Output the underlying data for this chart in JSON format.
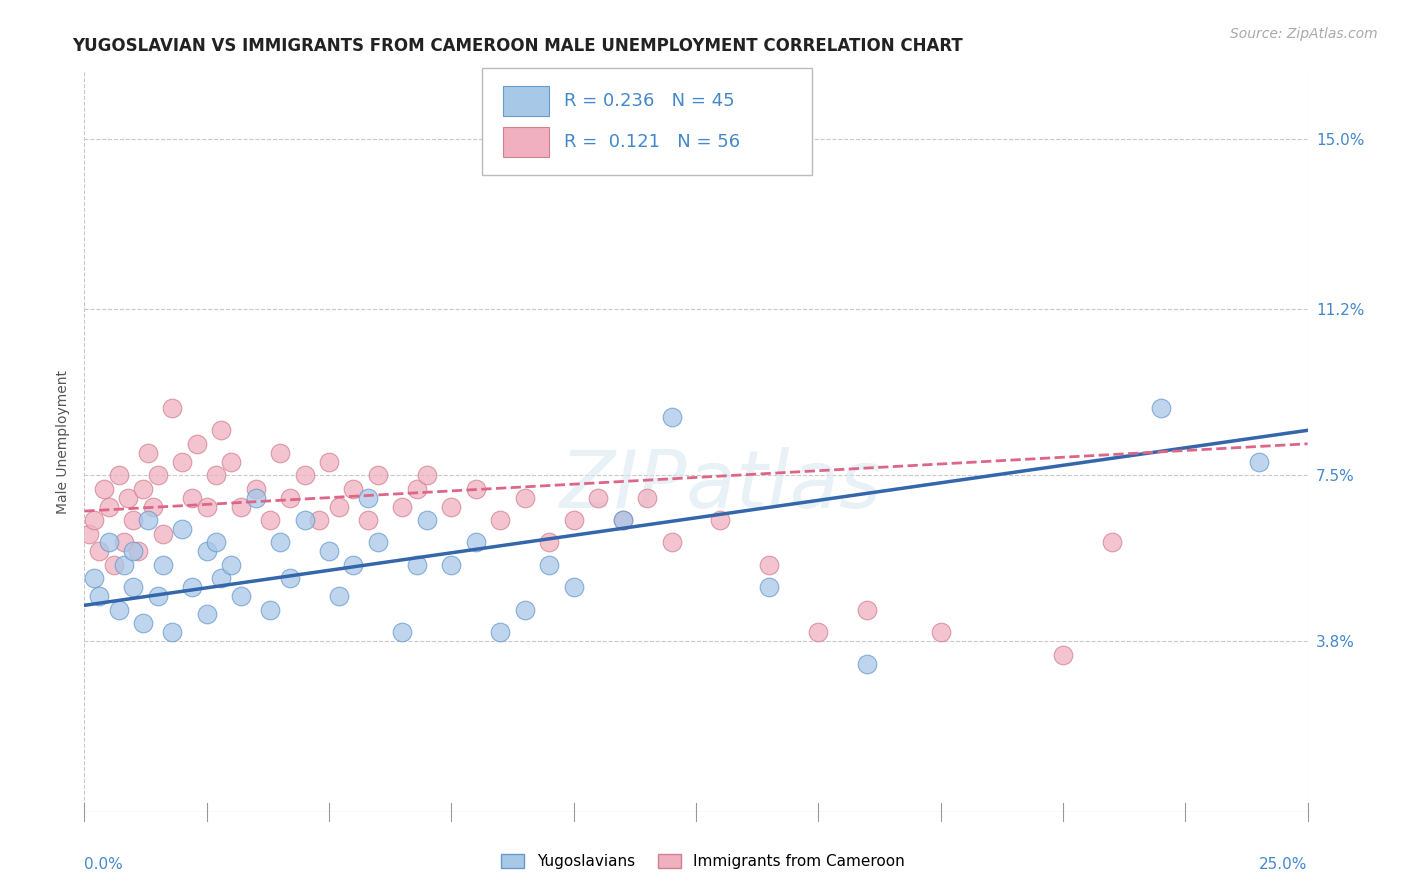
{
  "title": "YUGOSLAVIAN VS IMMIGRANTS FROM CAMEROON MALE UNEMPLOYMENT CORRELATION CHART",
  "source": "Source: ZipAtlas.com",
  "ylabel": "Male Unemployment",
  "xlim": [
    0.0,
    0.25
  ],
  "ylim": [
    0.0,
    0.165
  ],
  "yticks": [
    0.038,
    0.075,
    0.112,
    0.15
  ],
  "ytick_labels": [
    "3.8%",
    "7.5%",
    "11.2%",
    "15.0%"
  ],
  "xtick_labels": [
    "0.0%",
    "25.0%"
  ],
  "background_color": "#ffffff",
  "grid_color": "#c8c8d0",
  "watermark": "ZIPatlas",
  "blue_color": "#a8c8e8",
  "blue_edge_color": "#6699cc",
  "pink_color": "#f0b0c0",
  "pink_edge_color": "#d08090",
  "blue_line_color": "#3366aa",
  "pink_line_color": "#dd6688",
  "legend_text_color": "#4488cc",
  "tick_color": "#4488cc",
  "r_blue": 0.236,
  "n_blue": 45,
  "r_pink": 0.121,
  "n_pink": 56,
  "blue_scatter_x": [
    0.002,
    0.003,
    0.005,
    0.007,
    0.008,
    0.01,
    0.01,
    0.012,
    0.013,
    0.015,
    0.016,
    0.018,
    0.02,
    0.022,
    0.025,
    0.025,
    0.027,
    0.028,
    0.03,
    0.032,
    0.035,
    0.038,
    0.04,
    0.042,
    0.045,
    0.05,
    0.052,
    0.055,
    0.058,
    0.06,
    0.065,
    0.068,
    0.07,
    0.075,
    0.08,
    0.085,
    0.09,
    0.095,
    0.1,
    0.11,
    0.12,
    0.14,
    0.16,
    0.22,
    0.24
  ],
  "blue_scatter_y": [
    0.052,
    0.048,
    0.06,
    0.045,
    0.055,
    0.05,
    0.058,
    0.042,
    0.065,
    0.048,
    0.055,
    0.04,
    0.063,
    0.05,
    0.058,
    0.044,
    0.06,
    0.052,
    0.055,
    0.048,
    0.07,
    0.045,
    0.06,
    0.052,
    0.065,
    0.058,
    0.048,
    0.055,
    0.07,
    0.06,
    0.04,
    0.055,
    0.065,
    0.055,
    0.06,
    0.04,
    0.045,
    0.055,
    0.05,
    0.065,
    0.088,
    0.05,
    0.033,
    0.09,
    0.078
  ],
  "pink_scatter_x": [
    0.001,
    0.002,
    0.003,
    0.004,
    0.005,
    0.006,
    0.007,
    0.008,
    0.009,
    0.01,
    0.011,
    0.012,
    0.013,
    0.014,
    0.015,
    0.016,
    0.018,
    0.02,
    0.022,
    0.023,
    0.025,
    0.027,
    0.028,
    0.03,
    0.032,
    0.035,
    0.038,
    0.04,
    0.042,
    0.045,
    0.048,
    0.05,
    0.052,
    0.055,
    0.058,
    0.06,
    0.065,
    0.068,
    0.07,
    0.075,
    0.08,
    0.085,
    0.09,
    0.095,
    0.1,
    0.105,
    0.11,
    0.115,
    0.12,
    0.13,
    0.14,
    0.15,
    0.16,
    0.175,
    0.2,
    0.21
  ],
  "pink_scatter_y": [
    0.062,
    0.065,
    0.058,
    0.072,
    0.068,
    0.055,
    0.075,
    0.06,
    0.07,
    0.065,
    0.058,
    0.072,
    0.08,
    0.068,
    0.075,
    0.062,
    0.09,
    0.078,
    0.07,
    0.082,
    0.068,
    0.075,
    0.085,
    0.078,
    0.068,
    0.072,
    0.065,
    0.08,
    0.07,
    0.075,
    0.065,
    0.078,
    0.068,
    0.072,
    0.065,
    0.075,
    0.068,
    0.072,
    0.075,
    0.068,
    0.072,
    0.065,
    0.07,
    0.06,
    0.065,
    0.07,
    0.065,
    0.07,
    0.06,
    0.065,
    0.055,
    0.04,
    0.045,
    0.04,
    0.035,
    0.06
  ],
  "title_fontsize": 12,
  "axis_label_fontsize": 10,
  "tick_fontsize": 11,
  "legend_fontsize": 13,
  "source_fontsize": 10
}
